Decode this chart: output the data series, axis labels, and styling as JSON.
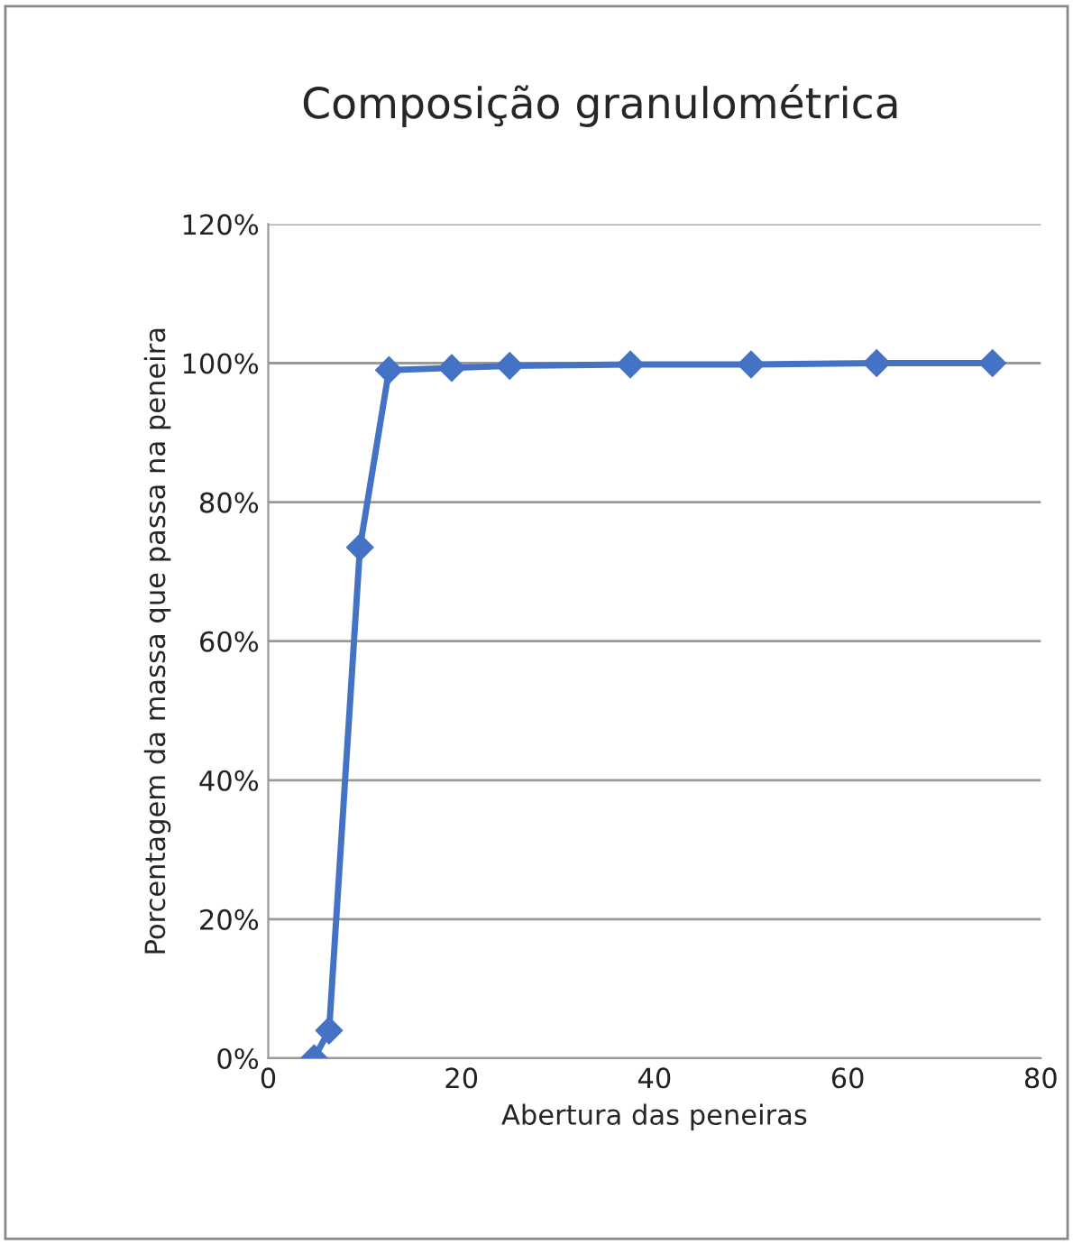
{
  "chart_data": {
    "type": "line",
    "title": "Composição granulométrica",
    "xlabel": "Abertura das peneiras",
    "ylabel": "Porcentagem da massa que passa na peneira",
    "x": [
      4.75,
      6.3,
      9.5,
      12.5,
      19,
      25,
      37.5,
      50,
      63,
      75
    ],
    "series": [
      {
        "color": "#4472c4",
        "values": [
          0,
          4,
          73.5,
          99,
          99.3,
          99.6,
          99.8,
          99.8,
          100,
          100
        ]
      }
    ],
    "xlim": [
      0,
      80
    ],
    "xticks": [
      0,
      20,
      40,
      60,
      80
    ],
    "ylim": [
      0,
      120
    ],
    "yticks": [
      {
        "value": 0,
        "label": "0%"
      },
      {
        "value": 20,
        "label": "20%"
      },
      {
        "value": 40,
        "label": "40%"
      },
      {
        "value": 60,
        "label": "60%"
      },
      {
        "value": 80,
        "label": "80%"
      },
      {
        "value": 100,
        "label": "100%"
      },
      {
        "value": 120,
        "label": "120%"
      }
    ],
    "grid": "y",
    "marker": "diamond",
    "line_style": "solid"
  }
}
